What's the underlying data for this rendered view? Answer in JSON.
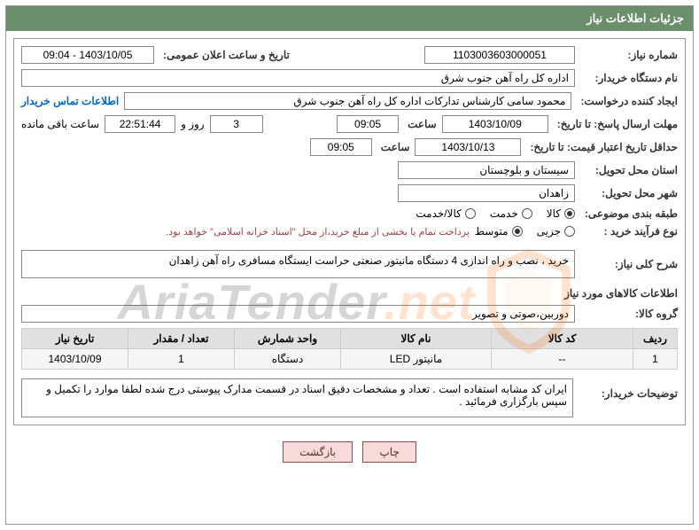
{
  "header": {
    "title": "جزئیات اطلاعات نیاز"
  },
  "fields": {
    "need_no_label": "شماره نیاز:",
    "need_no": "1103003603000051",
    "announce_label": "تاریخ و ساعت اعلان عمومی:",
    "announce": "1403/10/05 - 09:04",
    "buyer_org_label": "نام دستگاه خریدار:",
    "buyer_org": "اداره کل راه آهن جنوب شرق",
    "requester_label": "ایجاد کننده درخواست:",
    "requester": "محمود سامی   کارشناس تدارکات  اداره کل راه آهن جنوب شرق",
    "buyer_contact": "اطلاعات تماس خریدار",
    "reply_deadline_label": "مهلت ارسال پاسخ: تا تاریخ:",
    "reply_deadline_date": "1403/10/09",
    "time_label": "ساعت",
    "reply_deadline_time": "09:05",
    "remaining_days": "3",
    "days_and": "روز و",
    "remaining_time": "22:51:44",
    "remaining_suffix": "ساعت باقی مانده",
    "price_valid_label": "حداقل تاریخ اعتبار قیمت: تا تاریخ:",
    "price_valid_date": "1403/10/13",
    "price_valid_time": "09:05",
    "province_label": "استان محل تحویل:",
    "province": "سیستان و بلوچستان",
    "city_label": "شهر محل تحویل:",
    "city": "زاهدان",
    "category_label": "طبقه بندی موضوعی:",
    "process_label": "نوع فرآیند خرید :",
    "payment_note": "پرداخت تمام یا بخشی از مبلغ خرید،از محل \"اسناد خزانه اسلامی\" خواهد بود."
  },
  "category_options": [
    "کالا",
    "خدمت",
    "کالا/خدمت"
  ],
  "category_selected": 0,
  "process_options": [
    "جزیی",
    "متوسط"
  ],
  "process_selected": 1,
  "need_desc": {
    "label": "شرح کلی نیاز:",
    "text": "خرید ، نصب و راه اندازی 4 دستگاه مانیتور صنعتی حراست ایستگاه مسافری راه آهن زاهدان"
  },
  "items_section": {
    "title": "اطلاعات کالاهای مورد نیاز",
    "group_label": "گروه کالا:",
    "group": "دوربین،صوتی و تصویر"
  },
  "table": {
    "headers": [
      "ردیف",
      "کد کالا",
      "نام کالا",
      "واحد شمارش",
      "تعداد / مقدار",
      "تاریخ نیاز"
    ],
    "widths": [
      "50px",
      "160px",
      "auto",
      "120px",
      "120px",
      "120px"
    ],
    "row": [
      "1",
      "--",
      "مانیتور LED",
      "دستگاه",
      "1",
      "1403/10/09"
    ]
  },
  "buyer_notes": {
    "label": "توضیحات خریدار:",
    "text": "ایران کد مشابه استفاده است . تعداد و مشخصات دقیق اسناد در قسمت مدارک پیوستی درج شده لطفا موارد را تکمیل و سپس بارگزاری فرمائید ."
  },
  "buttons": {
    "print": "چاپ",
    "back": "بازگشت"
  },
  "watermark": {
    "t1": "AriaTender",
    "t2": ".net"
  },
  "colors": {
    "header_bg": "#6b8e6b",
    "btn_bg": "#f7dada",
    "btn_border": "#8a4a4a",
    "link": "#0066cc"
  }
}
